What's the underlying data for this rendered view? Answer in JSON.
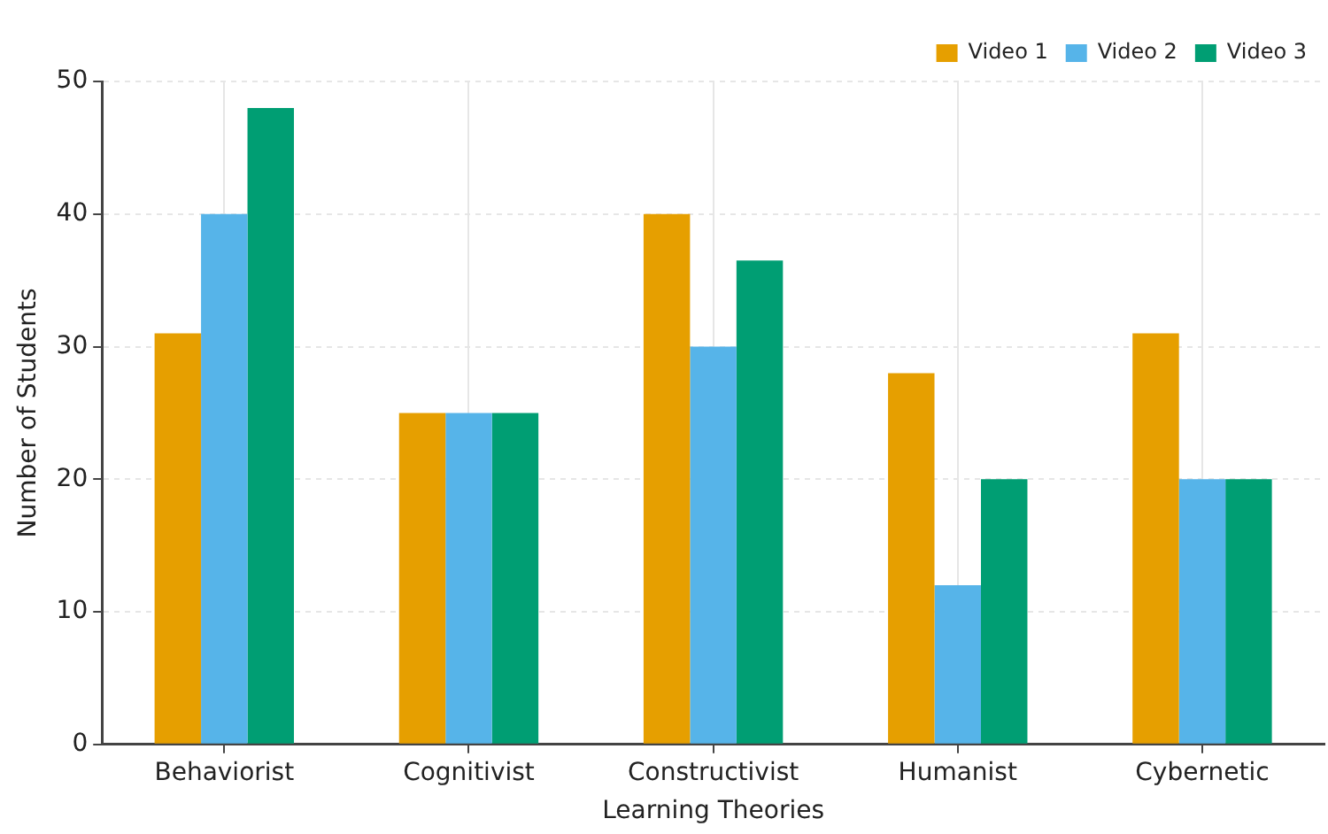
{
  "chart_data": {
    "type": "bar",
    "xlabel": "Learning Theories",
    "ylabel": "Number of Students",
    "categories": [
      "Behaviorist",
      "Cognitivist",
      "Constructivist",
      "Humanist",
      "Cybernetic"
    ],
    "series": [
      {
        "name": "Video 1",
        "color": "#e69f00",
        "values": [
          31,
          25,
          40,
          28,
          31
        ]
      },
      {
        "name": "Video 2",
        "color": "#56b4e9",
        "values": [
          40,
          25,
          30,
          12,
          20
        ]
      },
      {
        "name": "Video 3",
        "color": "#009e73",
        "values": [
          48,
          25,
          36.5,
          20,
          20
        ]
      }
    ],
    "ylim": [
      0,
      50
    ],
    "yticks": [
      0,
      10,
      20,
      30,
      40,
      50
    ],
    "grid": true,
    "legend": "top right"
  }
}
